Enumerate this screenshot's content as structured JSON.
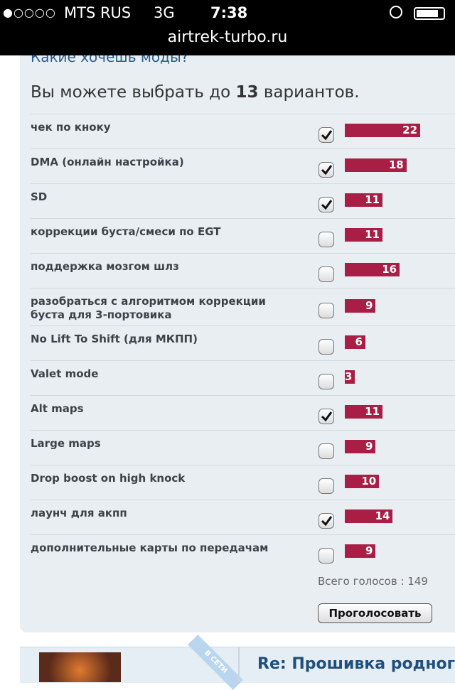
{
  "status": {
    "carrier": "MTS RUS",
    "network": "3G",
    "time": "7:38",
    "url": "airtrek-turbo.ru"
  },
  "poll": {
    "question": "Какие хочешь моды?",
    "limit_prefix": "Вы можете выбрать до",
    "limit": 13,
    "limit_suffix": "вариантов.",
    "options": [
      {
        "label": "чек по кноку",
        "checked": true,
        "votes": 22
      },
      {
        "label": "DMA (онлайн настройка)",
        "checked": true,
        "votes": 18
      },
      {
        "label": "SD",
        "checked": true,
        "votes": 11
      },
      {
        "label": "коррекции буста/смеси по EGT",
        "checked": false,
        "votes": 11
      },
      {
        "label": "поддержка мозгом шлз",
        "checked": false,
        "votes": 16
      },
      {
        "label": "разобраться с алгоритмом коррекции буста для 3-портовика",
        "checked": false,
        "votes": 9
      },
      {
        "label": "No Lift To Shift (для МКПП)",
        "checked": false,
        "votes": 6
      },
      {
        "label": "Valet mode",
        "checked": false,
        "votes": 3
      },
      {
        "label": "Alt maps",
        "checked": true,
        "votes": 11
      },
      {
        "label": "Large maps",
        "checked": false,
        "votes": 9
      },
      {
        "label": "Drop boost on high knock",
        "checked": false,
        "votes": 10
      },
      {
        "label": "лаунч для акпп",
        "checked": true,
        "votes": 14
      },
      {
        "label": "дополнительные карты по передачам",
        "checked": false,
        "votes": 9
      }
    ],
    "total_label": "Всего голосов :",
    "total": 149,
    "button": "Проголосовать"
  },
  "post": {
    "badge": "В СЕТИ",
    "title": "Re: Прошивка родного"
  }
}
